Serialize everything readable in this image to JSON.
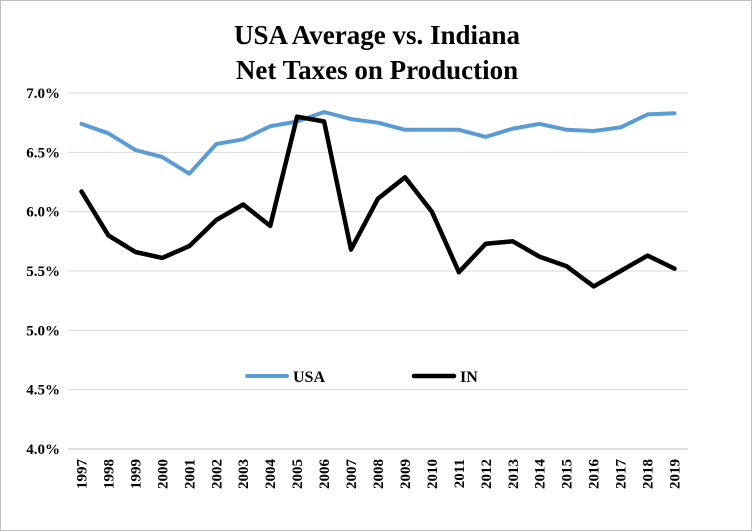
{
  "chart_data": {
    "type": "line",
    "title": [
      "USA Average vs. Indiana",
      "Net Taxes on Production"
    ],
    "xlabel": "",
    "ylabel": "",
    "ylim": [
      4.0,
      7.0
    ],
    "y_ticks": [
      "4.0%",
      "4.5%",
      "5.0%",
      "5.5%",
      "6.0%",
      "6.5%",
      "7.0%"
    ],
    "grid": "horizontal",
    "legend_position": "center",
    "categories": [
      "1997",
      "1998",
      "1999",
      "2000",
      "2001",
      "2002",
      "2003",
      "2004",
      "2005",
      "2006",
      "2007",
      "2008",
      "2009",
      "2010",
      "2011",
      "2012",
      "2013",
      "2014",
      "2015",
      "2016",
      "2017",
      "2018",
      "2019"
    ],
    "series": [
      {
        "name": "USA",
        "color": "#5b9bd5",
        "values": [
          6.74,
          6.66,
          6.52,
          6.46,
          6.32,
          6.57,
          6.61,
          6.72,
          6.76,
          6.84,
          6.78,
          6.75,
          6.69,
          6.69,
          6.69,
          6.63,
          6.7,
          6.74,
          6.69,
          6.68,
          6.71,
          6.82,
          6.83
        ]
      },
      {
        "name": "IN",
        "color": "#000000",
        "values": [
          6.17,
          5.8,
          5.66,
          5.61,
          5.71,
          5.93,
          6.06,
          5.88,
          6.8,
          6.76,
          5.68,
          6.11,
          6.29,
          6.0,
          5.49,
          5.73,
          5.75,
          5.62,
          5.54,
          5.37,
          5.5,
          5.63,
          5.52
        ]
      }
    ]
  }
}
